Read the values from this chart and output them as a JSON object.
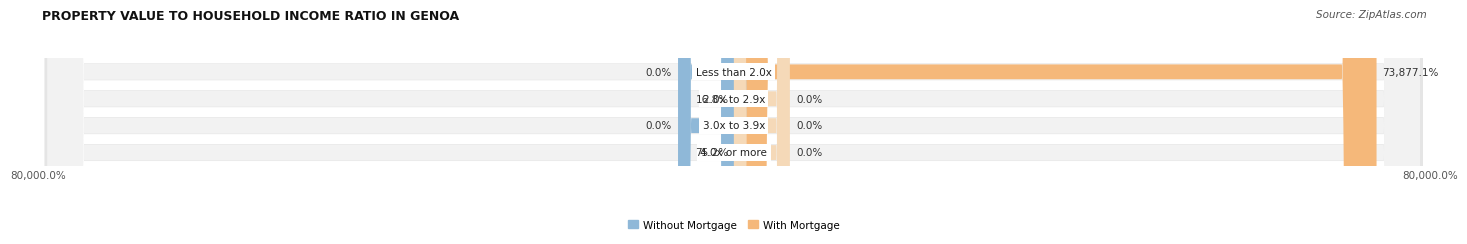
{
  "title": "PROPERTY VALUE TO HOUSEHOLD INCOME RATIO IN GENOA",
  "source": "Source: ZipAtlas.com",
  "categories": [
    "Less than 2.0x",
    "2.0x to 2.9x",
    "3.0x to 3.9x",
    "4.0x or more"
  ],
  "without_mortgage": [
    0.0,
    16.8,
    0.0,
    75.2
  ],
  "with_mortgage": [
    73877.1,
    0.0,
    0.0,
    0.0
  ],
  "without_mortgage_labels": [
    "0.0%",
    "16.8%",
    "0.0%",
    "75.2%"
  ],
  "with_mortgage_labels": [
    "73,877.1%",
    "0.0%",
    "0.0%",
    "0.0%"
  ],
  "color_without": "#8fb8d8",
  "color_with": "#f5b87a",
  "color_with_zero": "#f5d9b8",
  "color_bg_row": "#e5e5e5",
  "color_bg_inner": "#f2f2f2",
  "xlim_left": -80000,
  "xlim_right": 80000,
  "x_tick_labels": [
    "80,000.0%",
    "80,000.0%"
  ],
  "legend_labels": [
    "Without Mortgage",
    "With Mortgage"
  ],
  "bar_height": 0.55,
  "title_fontsize": 9,
  "source_fontsize": 7.5,
  "label_fontsize": 7.5,
  "cat_fontsize": 7.5,
  "tick_fontsize": 7.5,
  "legend_fontsize": 7.5
}
